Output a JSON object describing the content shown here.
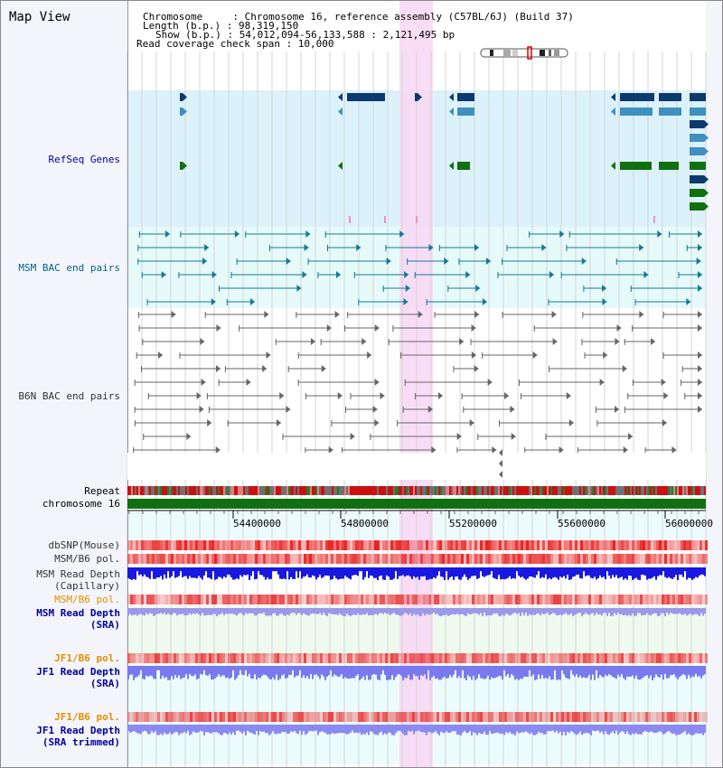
{
  "title": "Map View",
  "info": {
    "chromosome_line": "Chromosome     : Chromosome 16, reference assembly (C57BL/6J) (Build 37)",
    "length_line": "Length (b.p.) : 98,319,150",
    "show_line": "Show (b.p.) : 54,012,094-56,133,588 : 2,121,495 bp",
    "coverage_line": "Read coverage check span : 10,000"
  },
  "tracks": {
    "refseq": "RefSeq Genes",
    "msm_bac": "MSM BAC end pairs",
    "b6n_bac": "B6N BAC end pairs",
    "repeat": "Repeat",
    "chromosome": "chromosome 16",
    "dbsnp": "dbSNP(Mouse)",
    "msm_b6_pol_1": "MSM/B6 pol.",
    "msm_depth_cap_1": "MSM Read Depth",
    "msm_depth_cap_2": "(Capillary)",
    "msm_b6_pol_2": "MSM/B6 pol.",
    "msm_depth_sra_1": "MSM Read Depth",
    "msm_depth_sra_2": "(SRA)",
    "jf1_b6_pol_1": "JF1/B6 pol.",
    "jf1_depth_sra_1": "JF1 Read Depth",
    "jf1_depth_sra_2": "(SRA)",
    "jf1_b6_pol_2": "JF1/B6 pol.",
    "jf1_depth_trim_1": "JF1 Read Depth",
    "jf1_depth_trim_2": "(SRA trimmed)"
  },
  "axis": {
    "ticks": [
      "54400000",
      "54800000",
      "55200000",
      "55600000",
      "56000000"
    ]
  },
  "colors": {
    "refseq_bg": "#dcf2fb",
    "bac_bg": "#e6fafa",
    "highlight": "#f8d8f4",
    "gene_dark": "#0c3a6e",
    "gene_mid": "#3f8fc0",
    "gene_green": "#107010",
    "msm_bac": "#137a96",
    "b6n_bac": "#666666",
    "label_dark": "#333333",
    "label_blue": "#00009c",
    "label_orange": "#e09000",
    "label_teal": "#006680"
  }
}
